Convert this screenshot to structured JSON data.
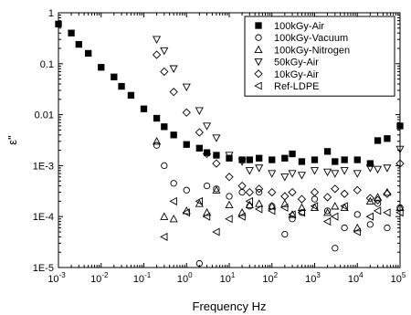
{
  "chart_data": {
    "type": "scatter",
    "title": "",
    "xlabel": "Frequency Hz",
    "ylabel": "ε\"",
    "x_scale": "log",
    "y_scale": "log",
    "xlim": [
      0.001,
      100000
    ],
    "ylim": [
      1e-05,
      1
    ],
    "grid": false,
    "legend_position": "top-right",
    "x_ticks": [
      {
        "value": 0.001,
        "base": "10",
        "exp": "-3"
      },
      {
        "value": 0.01,
        "base": "10",
        "exp": "-2"
      },
      {
        "value": 0.1,
        "base": "10",
        "exp": "-1"
      },
      {
        "value": 1,
        "base": "10",
        "exp": "0"
      },
      {
        "value": 10,
        "base": "10",
        "exp": "1"
      },
      {
        "value": 100,
        "base": "10",
        "exp": "2"
      },
      {
        "value": 1000,
        "base": "10",
        "exp": "3"
      },
      {
        "value": 10000,
        "base": "10",
        "exp": "4"
      },
      {
        "value": 100000,
        "base": "10",
        "exp": "5"
      }
    ],
    "y_ticks": [
      {
        "value": 1,
        "label": "1"
      },
      {
        "value": 0.1,
        "label": "0.1"
      },
      {
        "value": 0.01,
        "label": "0.01"
      },
      {
        "value": 0.001,
        "label": "1E-3"
      },
      {
        "value": 0.0001,
        "label": "1E-4"
      },
      {
        "value": 1e-05,
        "label": "1E-5"
      }
    ],
    "series": [
      {
        "name": "100kGy-Air",
        "marker": "square-filled",
        "x": [
          0.001,
          0.002,
          0.003,
          0.005,
          0.01,
          0.02,
          0.03,
          0.05,
          0.1,
          0.2,
          0.3,
          0.5,
          1,
          2,
          3,
          5,
          10,
          20,
          30,
          50,
          100,
          200,
          300,
          500,
          1000,
          2000,
          3000,
          5000,
          10000,
          20000,
          30000,
          50000,
          100000
        ],
        "y": [
          0.6,
          0.4,
          0.24,
          0.16,
          0.085,
          0.055,
          0.036,
          0.024,
          0.013,
          0.0085,
          0.0058,
          0.004,
          0.0026,
          0.0022,
          0.0018,
          0.0016,
          0.0014,
          0.0013,
          0.0013,
          0.0014,
          0.0013,
          0.0014,
          0.0017,
          0.0012,
          0.0013,
          0.0019,
          0.0012,
          0.0013,
          0.0013,
          0.0011,
          0.0031,
          0.0034,
          0.006
        ]
      },
      {
        "name": "100kGy-Vacuum",
        "marker": "circle-open",
        "x": [
          0.2,
          0.3,
          0.5,
          1,
          2,
          3,
          5,
          10,
          20,
          30,
          50,
          100,
          200,
          300,
          500,
          1000,
          2000,
          3000,
          5000,
          10000,
          20000,
          30000,
          50000,
          100000
        ],
        "y": [
          0.0025,
          0.001,
          0.00045,
          0.00033,
          1.2e-05,
          0.0004,
          0.00035,
          0.00025,
          0.0003,
          0.00016,
          0.0003,
          0.00016,
          4.5e-05,
          9e-05,
          0.00012,
          0.00022,
          0.00013,
          2.4e-05,
          6e-05,
          0.00011,
          7e-05,
          0.00018,
          6e-05,
          0.00015
        ]
      },
      {
        "name": "100kGy-Nitrogen",
        "marker": "triangle-up-open",
        "x": [
          0.2,
          0.3,
          0.5,
          1,
          2,
          3,
          5,
          10,
          20,
          30,
          50,
          100,
          200,
          300,
          500,
          1000,
          2000,
          3000,
          5000,
          10000,
          20000,
          30000,
          50000,
          100000
        ],
        "y": [
          0.003,
          0.0001,
          9e-05,
          0.00013,
          0.00018,
          0.00012,
          0.00033,
          0.00017,
          0.00012,
          0.00017,
          0.00018,
          0.00016,
          0.00018,
          0.00011,
          0.00015,
          0.00015,
          0.00012,
          0.00016,
          0.00015,
          6e-05,
          0.0002,
          0.00024,
          0.0003,
          0.00015
        ]
      },
      {
        "name": "50kGy-Air",
        "marker": "triangle-down-open",
        "x": [
          0.2,
          0.3,
          0.5,
          1,
          2,
          3,
          5,
          10,
          20,
          30,
          50,
          100,
          200,
          300,
          500,
          1000,
          2000,
          3000,
          5000,
          10000,
          20000,
          30000,
          50000,
          100000
        ],
        "y": [
          0.3,
          0.18,
          0.08,
          0.035,
          0.012,
          0.006,
          0.0035,
          0.0016,
          0.0012,
          0.0008,
          0.0009,
          0.0007,
          0.0006,
          0.0007,
          0.00065,
          0.0008,
          0.00075,
          0.0007,
          0.0008,
          0.0007,
          0.0009,
          0.00085,
          0.0009,
          0.0021
        ]
      },
      {
        "name": "10kGy-Air",
        "marker": "diamond-open",
        "x": [
          0.2,
          0.3,
          0.5,
          1,
          2,
          3,
          5,
          10,
          20,
          30,
          50,
          100,
          200,
          300,
          500,
          1000,
          2000,
          3000,
          5000,
          10000,
          20000,
          30000,
          50000,
          100000
        ],
        "y": [
          0.15,
          0.07,
          0.028,
          0.011,
          0.0045,
          0.0017,
          0.0011,
          0.0006,
          0.0004,
          0.0003,
          0.00035,
          0.0003,
          0.00025,
          0.0003,
          0.00022,
          0.0003,
          0.00024,
          0.00035,
          0.00028,
          0.00033,
          0.00023,
          0.00021,
          0.00028,
          0.0011
        ]
      },
      {
        "name": "Ref-LDPE",
        "marker": "triangle-left-open",
        "x": [
          0.3,
          0.5,
          1,
          2,
          3,
          5,
          10,
          20,
          30,
          50,
          100,
          200,
          300,
          500,
          1000,
          2000,
          3000,
          5000,
          10000,
          20000,
          30000,
          50000,
          100000
        ],
        "y": [
          4e-05,
          0.0002,
          0.00012,
          0.0002,
          0.0001,
          5e-05,
          9e-05,
          0.0001,
          0.0002,
          0.00014,
          0.00013,
          0.00015,
          0.00011,
          0.00012,
          0.00016,
          8e-05,
          0.0001,
          0.00016,
          5e-05,
          0.0001,
          0.00013,
          0.00012,
          0.00012
        ]
      }
    ]
  }
}
